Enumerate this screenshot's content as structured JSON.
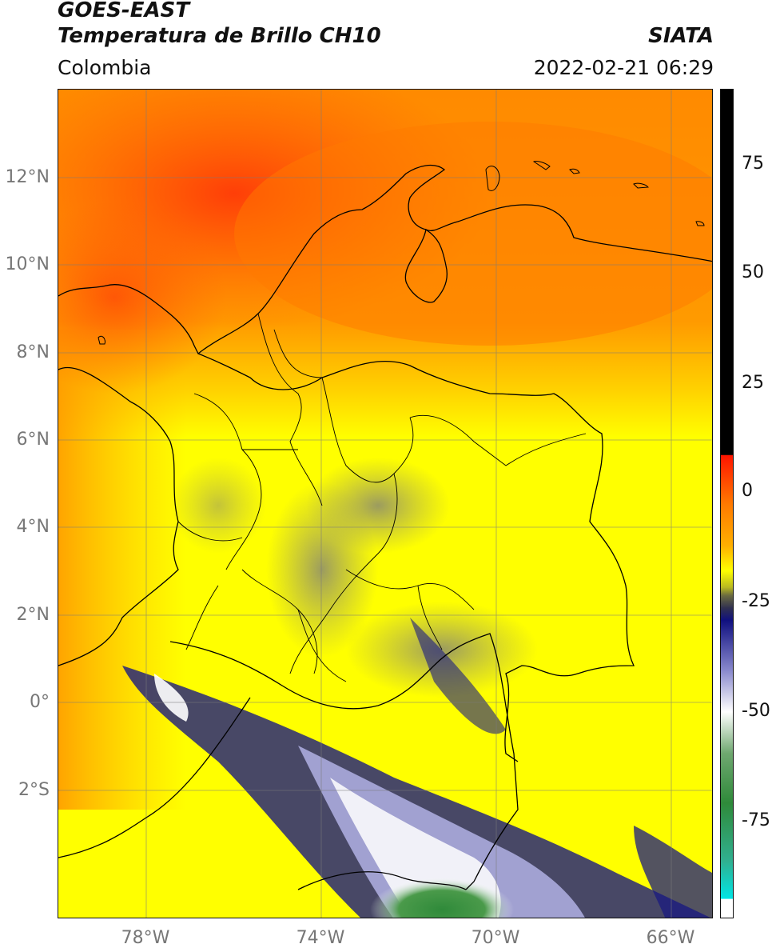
{
  "header": {
    "title_line1": "GOES-EAST",
    "title_line2": "Temperatura de Brillo CH10",
    "region": "Colombia",
    "organization": "SIATA",
    "datetime": "2022-02-21 06:29"
  },
  "map": {
    "latitude_labels": [
      "12°N",
      "10°N",
      "8°N",
      "6°N",
      "4°N",
      "2°N",
      "0°",
      "2°S"
    ],
    "longitude_labels": [
      "78°W",
      "74°W",
      "70°W",
      "66°W"
    ],
    "colors": {
      "warm_red": "#ff5a08",
      "orange": "#ff9a00",
      "yellow": "#ffff00",
      "gray": "#8c8c8c",
      "navy": "#1a1a80",
      "white": "#ffffff",
      "green": "#3a8a3a",
      "border": "#000000"
    }
  },
  "colorbar": {
    "tick_labels": [
      "75",
      "50",
      "25",
      "0",
      "-25",
      "-50",
      "-75"
    ],
    "colors": {
      "black": "#000000",
      "red": "#ff1500",
      "orange": "#ff9a00",
      "yellow": "#ffff00",
      "olive": "#6a6a40",
      "navy": "#101080",
      "white": "#ffffff",
      "green": "#2f8a3a",
      "cyan": "#00e5e5"
    }
  }
}
